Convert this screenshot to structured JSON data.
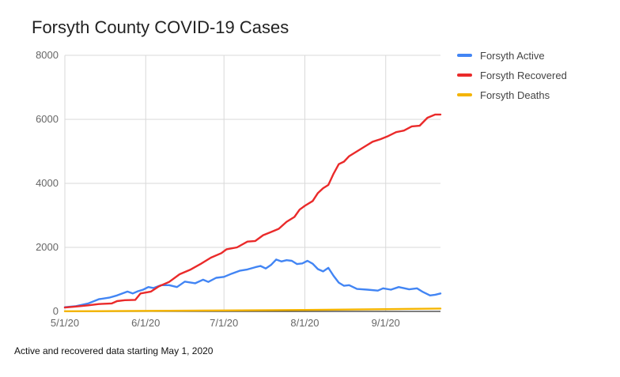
{
  "chart_data": {
    "type": "line",
    "title": "Forsyth County COVID-19 Cases",
    "xlabel": "",
    "ylabel": "",
    "x_ticks": [
      "5/1/20",
      "6/1/20",
      "7/1/20",
      "8/1/20",
      "9/1/20"
    ],
    "y_ticks": [
      "0",
      "2000",
      "4000",
      "6000",
      "8000"
    ],
    "ylim": [
      0,
      8000
    ],
    "xlim": [
      "5/1/20",
      "9/22/20"
    ],
    "grid": "vertical and horizontal",
    "legend_position": "right",
    "series": [
      {
        "name": "Forsyth Active",
        "color": "#4285f4",
        "points": [
          [
            "5/1/20",
            130
          ],
          [
            "5/5/20",
            160
          ],
          [
            "5/10/20",
            250
          ],
          [
            "5/14/20",
            380
          ],
          [
            "5/18/20",
            430
          ],
          [
            "5/21/20",
            500
          ],
          [
            "5/25/20",
            620
          ],
          [
            "5/27/20",
            560
          ],
          [
            "5/29/20",
            630
          ],
          [
            "5/31/20",
            680
          ],
          [
            "6/2/20",
            760
          ],
          [
            "6/4/20",
            730
          ],
          [
            "6/7/20",
            820
          ],
          [
            "6/10/20",
            820
          ],
          [
            "6/13/20",
            760
          ],
          [
            "6/16/20",
            930
          ],
          [
            "6/20/20",
            880
          ],
          [
            "6/23/20",
            990
          ],
          [
            "6/25/20",
            920
          ],
          [
            "6/28/20",
            1050
          ],
          [
            "7/1/20",
            1080
          ],
          [
            "7/4/20",
            1180
          ],
          [
            "7/7/20",
            1270
          ],
          [
            "7/10/20",
            1310
          ],
          [
            "7/13/20",
            1380
          ],
          [
            "7/15/20",
            1420
          ],
          [
            "7/17/20",
            1340
          ],
          [
            "7/19/20",
            1450
          ],
          [
            "7/21/20",
            1620
          ],
          [
            "7/23/20",
            1560
          ],
          [
            "7/25/20",
            1600
          ],
          [
            "7/27/20",
            1580
          ],
          [
            "7/29/20",
            1480
          ],
          [
            "7/31/20",
            1500
          ],
          [
            "8/2/20",
            1580
          ],
          [
            "8/4/20",
            1490
          ],
          [
            "8/6/20",
            1320
          ],
          [
            "8/8/20",
            1250
          ],
          [
            "8/10/20",
            1360
          ],
          [
            "8/12/20",
            1110
          ],
          [
            "8/14/20",
            900
          ],
          [
            "8/16/20",
            800
          ],
          [
            "8/18/20",
            820
          ],
          [
            "8/21/20",
            700
          ],
          [
            "8/25/20",
            680
          ],
          [
            "8/29/20",
            650
          ],
          [
            "8/31/20",
            720
          ],
          [
            "9/3/20",
            680
          ],
          [
            "9/6/20",
            760
          ],
          [
            "9/10/20",
            690
          ],
          [
            "9/13/20",
            720
          ],
          [
            "9/15/20",
            620
          ],
          [
            "9/18/20",
            500
          ],
          [
            "9/20/20",
            520
          ],
          [
            "9/22/20",
            560
          ]
        ]
      },
      {
        "name": "Forsyth Recovered",
        "color": "#ea2a2a",
        "points": [
          [
            "5/1/20",
            120
          ],
          [
            "5/5/20",
            150
          ],
          [
            "5/10/20",
            190
          ],
          [
            "5/14/20",
            230
          ],
          [
            "5/19/20",
            250
          ],
          [
            "5/21/20",
            320
          ],
          [
            "5/24/20",
            350
          ],
          [
            "5/28/20",
            360
          ],
          [
            "5/30/20",
            560
          ],
          [
            "6/3/20",
            620
          ],
          [
            "6/6/20",
            780
          ],
          [
            "6/10/20",
            920
          ],
          [
            "6/14/20",
            1160
          ],
          [
            "6/18/20",
            1300
          ],
          [
            "6/22/20",
            1480
          ],
          [
            "6/26/20",
            1680
          ],
          [
            "6/30/20",
            1820
          ],
          [
            "7/2/20",
            1940
          ],
          [
            "7/6/20",
            2000
          ],
          [
            "7/10/20",
            2180
          ],
          [
            "7/13/20",
            2200
          ],
          [
            "7/16/20",
            2380
          ],
          [
            "7/19/20",
            2480
          ],
          [
            "7/22/20",
            2580
          ],
          [
            "7/25/20",
            2800
          ],
          [
            "7/28/20",
            2950
          ],
          [
            "7/30/20",
            3180
          ],
          [
            "8/1/20",
            3300
          ],
          [
            "8/4/20",
            3450
          ],
          [
            "8/6/20",
            3700
          ],
          [
            "8/8/20",
            3850
          ],
          [
            "8/10/20",
            3950
          ],
          [
            "8/12/20",
            4300
          ],
          [
            "8/14/20",
            4600
          ],
          [
            "8/16/20",
            4680
          ],
          [
            "8/18/20",
            4850
          ],
          [
            "8/21/20",
            5000
          ],
          [
            "8/24/20",
            5150
          ],
          [
            "8/27/20",
            5300
          ],
          [
            "8/30/20",
            5380
          ],
          [
            "9/2/20",
            5480
          ],
          [
            "9/5/20",
            5600
          ],
          [
            "9/8/20",
            5650
          ],
          [
            "9/11/20",
            5780
          ],
          [
            "9/14/20",
            5800
          ],
          [
            "9/17/20",
            6050
          ],
          [
            "9/20/20",
            6150
          ],
          [
            "9/22/20",
            6150
          ]
        ]
      },
      {
        "name": "Forsyth Deaths",
        "color": "#f4b400",
        "points": [
          [
            "5/1/20",
            5
          ],
          [
            "5/20/20",
            10
          ],
          [
            "6/10/20",
            20
          ],
          [
            "7/1/20",
            30
          ],
          [
            "7/20/20",
            40
          ],
          [
            "8/1/20",
            45
          ],
          [
            "8/20/20",
            60
          ],
          [
            "9/1/20",
            70
          ],
          [
            "9/22/20",
            90
          ]
        ]
      }
    ]
  },
  "footnote": "Active and recovered data starting May 1, 2020"
}
